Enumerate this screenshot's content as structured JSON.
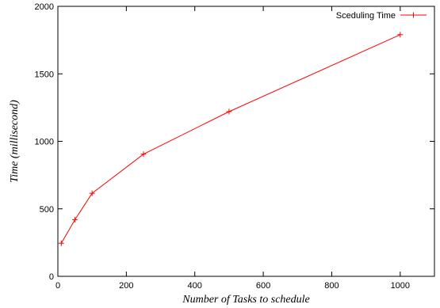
{
  "chart_data": {
    "type": "line",
    "title": "",
    "xlabel": "Number of Tasks to schedule",
    "ylabel": "Time (millisecond)",
    "xlim": [
      0,
      1100
    ],
    "ylim": [
      0,
      2000
    ],
    "xticks": [
      0,
      200,
      400,
      600,
      800,
      1000
    ],
    "yticks": [
      0,
      500,
      1000,
      1500,
      2000
    ],
    "grid": false,
    "legend_position": "top-right",
    "series": [
      {
        "name": "Sceduling Time",
        "color": "#ff0000",
        "marker": "plus",
        "x": [
          10,
          50,
          100,
          250,
          500,
          1000
        ],
        "y": [
          245,
          420,
          615,
          905,
          1220,
          1790
        ]
      }
    ]
  }
}
